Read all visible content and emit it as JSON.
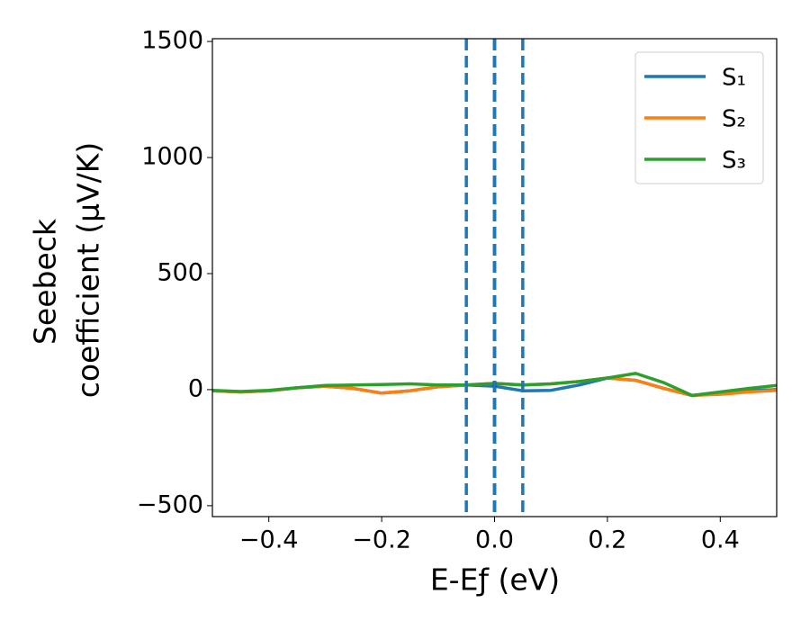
{
  "chart_data": {
    "type": "line",
    "xlabel": "E-Eƒ (eV)",
    "ylabel": [
      "Seebeck",
      "coefficient  (μV/K)"
    ],
    "x": [
      -0.5,
      -0.45,
      -0.4,
      -0.35,
      -0.3,
      -0.25,
      -0.2,
      -0.15,
      -0.1,
      -0.05,
      0,
      0.05,
      0.1,
      0.15,
      0.2,
      0.25,
      0.3,
      0.35,
      0.4,
      0.45,
      0.5
    ],
    "series": [
      {
        "name": "S₁",
        "color": "#1f77b4",
        "values": [
          -5,
          -10,
          -5,
          8,
          15,
          5,
          -15,
          -5,
          12,
          20,
          15,
          -5,
          -3,
          20,
          50,
          40,
          5,
          -25,
          -15,
          -5,
          0
        ]
      },
      {
        "name": "S₂",
        "color": "#ff7f0e",
        "values": [
          -5,
          -10,
          -5,
          8,
          15,
          5,
          -15,
          -5,
          12,
          20,
          27,
          20,
          25,
          35,
          50,
          40,
          5,
          -25,
          -20,
          -10,
          -3
        ]
      },
      {
        "name": "S₃",
        "color": "#2ca02c",
        "values": [
          -3,
          -8,
          -3,
          8,
          18,
          20,
          22,
          25,
          20,
          20,
          27,
          20,
          25,
          35,
          50,
          70,
          30,
          -25,
          -10,
          5,
          18
        ]
      }
    ],
    "vlines": [
      {
        "x": 0,
        "color": "#000000"
      },
      {
        "x": -0.05,
        "color": "#1f77b4"
      },
      {
        "x": 0,
        "color": "#1f77b4"
      },
      {
        "x": 0.05,
        "color": "#1f77b4"
      }
    ],
    "xlim": [
      -0.5,
      0.5
    ],
    "ylim": [
      -547,
      1512
    ],
    "xticks": [
      {
        "value": -0.4,
        "label": "−0.4"
      },
      {
        "value": -0.2,
        "label": "−0.2"
      },
      {
        "value": 0,
        "label": "0.0"
      },
      0.2,
      0.4
    ],
    "yticks": [
      {
        "value": -500,
        "label": "−500"
      },
      0,
      500,
      1000,
      1500
    ],
    "legend": "upper right"
  }
}
